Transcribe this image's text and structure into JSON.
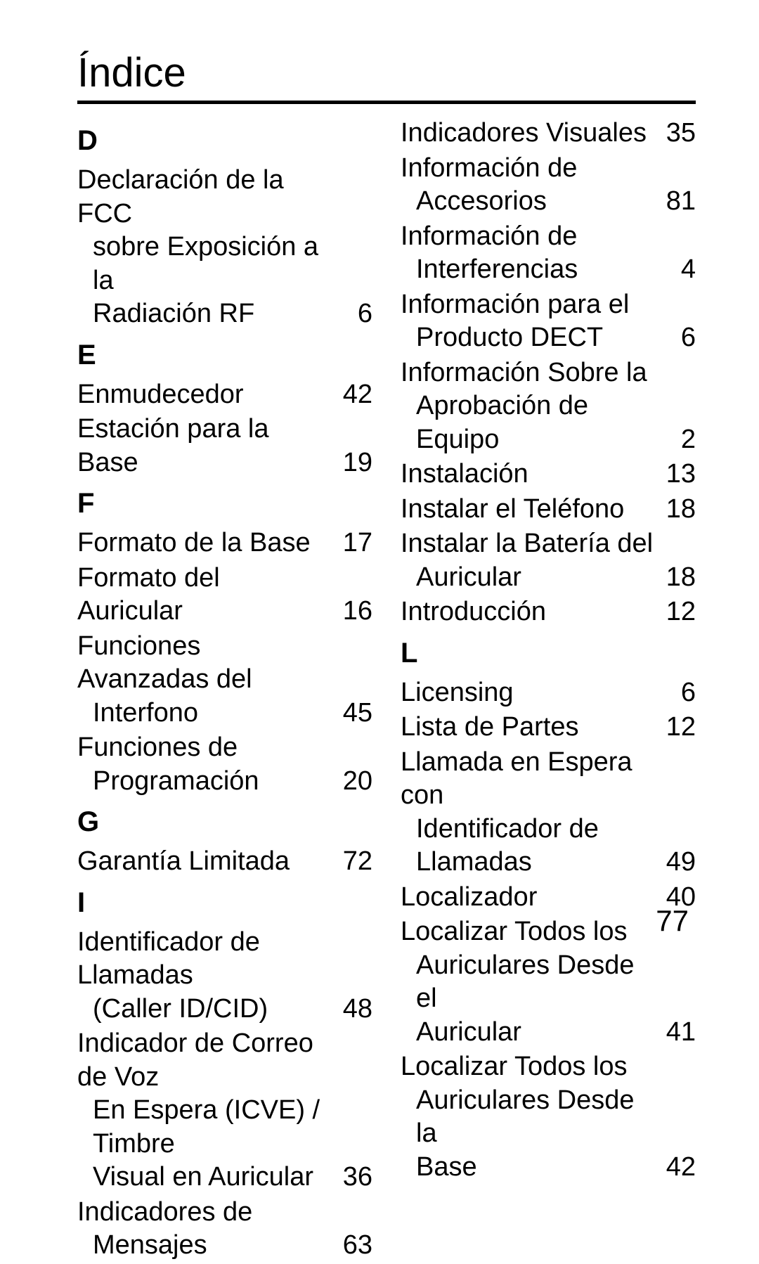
{
  "title": "Índice",
  "page_number": "77",
  "columns": [
    {
      "sections": [
        {
          "letter": "D",
          "entries": [
            {
              "lines": [
                "Declaración de la FCC",
                "sobre Exposición a la",
                "Radiación RF"
              ],
              "page": "6"
            }
          ]
        },
        {
          "letter": "E",
          "entries": [
            {
              "lines": [
                "Enmudecedor"
              ],
              "page": "42"
            },
            {
              "lines": [
                "Estación para la Base"
              ],
              "page": "19"
            }
          ]
        },
        {
          "letter": "F",
          "entries": [
            {
              "lines": [
                "Formato de la Base"
              ],
              "page": "17"
            },
            {
              "lines": [
                "Formato del Auricular"
              ],
              "page": "16"
            },
            {
              "lines": [
                "Funciones Avanzadas del",
                "Interfono"
              ],
              "page": "45"
            },
            {
              "lines": [
                "Funciones de",
                "Programación"
              ],
              "page": "20"
            }
          ]
        },
        {
          "letter": "G",
          "entries": [
            {
              "lines": [
                "Garantía Limitada"
              ],
              "page": "72"
            }
          ]
        },
        {
          "letter": "I",
          "entries": [
            {
              "lines": [
                "Identificador de Llamadas",
                "(Caller ID/CID)"
              ],
              "page": "48"
            },
            {
              "lines": [
                "Indicador de Correo de Voz",
                "En Espera (ICVE) / Timbre",
                "Visual en Auricular"
              ],
              "page": "36"
            },
            {
              "lines": [
                "Indicadores de",
                "Mensajes"
              ],
              "page": "63"
            }
          ]
        }
      ]
    },
    {
      "sections": [
        {
          "letter": "",
          "entries": [
            {
              "lines": [
                "Indicadores Visuales"
              ],
              "page": "35"
            },
            {
              "lines": [
                "Información de",
                "Accesorios"
              ],
              "page": "81"
            },
            {
              "lines": [
                "Información de",
                "Interferencias"
              ],
              "page": "4"
            },
            {
              "lines": [
                "Información para el",
                "Producto DECT"
              ],
              "page": "6"
            },
            {
              "lines": [
                "Información Sobre la",
                "Aprobación de Equipo"
              ],
              "page": "2"
            },
            {
              "lines": [
                "Instalación"
              ],
              "page": "13"
            },
            {
              "lines": [
                "Instalar el Teléfono"
              ],
              "page": "18"
            },
            {
              "lines": [
                "Instalar la Batería del",
                "Auricular"
              ],
              "page": "18"
            },
            {
              "lines": [
                "Introducción"
              ],
              "page": "12"
            }
          ]
        },
        {
          "letter": "L",
          "entries": [
            {
              "lines": [
                "Licensing"
              ],
              "page": "6"
            },
            {
              "lines": [
                "Lista de Partes"
              ],
              "page": "12"
            },
            {
              "lines": [
                "Llamada en Espera con",
                "Identificador de",
                "Llamadas"
              ],
              "page": "49"
            },
            {
              "lines": [
                "Localizador"
              ],
              "page": "40"
            },
            {
              "lines": [
                "Localizar Todos los",
                "Auriculares Desde el",
                "Auricular"
              ],
              "page": "41"
            },
            {
              "lines": [
                "Localizar Todos los",
                "Auriculares Desde la",
                "Base"
              ],
              "page": "42"
            }
          ]
        }
      ]
    }
  ]
}
